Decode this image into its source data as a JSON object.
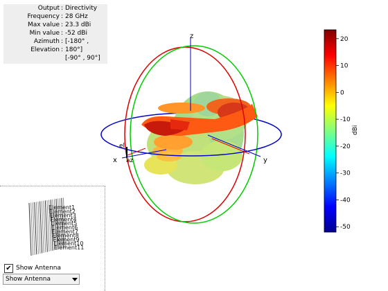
{
  "info": [
    {
      "key": "Output",
      "value": "Directivity"
    },
    {
      "key": "Frequency",
      "value": "28 GHz"
    },
    {
      "key": "Max value",
      "value": "23.3 dBi"
    },
    {
      "key": "Min value",
      "value": "-52 dBi"
    },
    {
      "key": "Azimuth",
      "value": "[-180° ,"
    },
    {
      "key": "Elevation",
      "value": "180°]"
    },
    {
      "key": "",
      "value": "[-90° , 90°]"
    }
  ],
  "axes": {
    "x": "x",
    "y": "y",
    "z": "z",
    "el": "el",
    "az": "az"
  },
  "antenna_labels": [
    "Element1",
    "Element2",
    "Element3",
    "Element4",
    "Element5",
    "Element6",
    "Element7",
    "Element8",
    "Element9",
    "Element10",
    "Element11"
  ],
  "controls": {
    "show_antenna_label": "Show Antenna",
    "show_antenna_checked": true,
    "check_mark": "✔",
    "select_value": "Show Antenna"
  },
  "colors": {
    "circle_xy": "#0000cc",
    "circle_xz": "#dd0000",
    "circle_yz": "#00cc00",
    "axis": "#0000cc"
  },
  "chart_data": {
    "type": "heatmap",
    "title": "",
    "colorbar": {
      "label": "dBi",
      "min": -52,
      "max": 23.3,
      "ticks": [
        20,
        10,
        0,
        -10,
        -20,
        -30,
        -40,
        -50
      ],
      "colormap": "jet"
    },
    "max_value": 23.3,
    "min_value": -52
  }
}
